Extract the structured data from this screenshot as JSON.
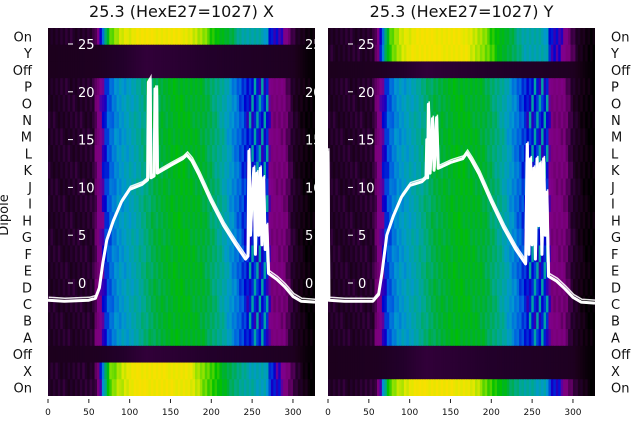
{
  "chart_data": [
    {
      "type": "heatmap",
      "title": "25.3 (HexE27=1027) X",
      "ylabel": "Dipole",
      "row_labels": [
        "On",
        "Y",
        "Off",
        "P",
        "O",
        "N",
        "M",
        "L",
        "K",
        "J",
        "I",
        "H",
        "G",
        "F",
        "E",
        "D",
        "C",
        "B",
        "A",
        "Off",
        "X",
        "On"
      ],
      "row_types": [
        "bright",
        "dark",
        "dark",
        "mid",
        "mid",
        "mid",
        "mid",
        "mid",
        "mid",
        "mid",
        "mid",
        "mid",
        "mid",
        "mid",
        "mid",
        "mid",
        "mid",
        "mid",
        "mid",
        "dark",
        "bright",
        "bright"
      ],
      "xlim": [
        0,
        327
      ],
      "x_ticks": [
        "0",
        "50",
        "100",
        "150",
        "200",
        "250",
        "300"
      ],
      "overlay_ylim": [
        -3.5,
        26.5
      ],
      "overlay_ticks": [
        "0",
        "5",
        "10",
        "15",
        "20",
        "25"
      ],
      "overlay_line": [
        [
          0,
          -1.8
        ],
        [
          20,
          -1.9
        ],
        [
          50,
          -1.8
        ],
        [
          58,
          -1.6
        ],
        [
          63,
          -0.5
        ],
        [
          67,
          2
        ],
        [
          72,
          4.5
        ],
        [
          80,
          6.5
        ],
        [
          90,
          8.5
        ],
        [
          100,
          9.8
        ],
        [
          115,
          10.3
        ],
        [
          122,
          10.8
        ],
        [
          123,
          21
        ],
        [
          125,
          21.3
        ],
        [
          126,
          11
        ],
        [
          130,
          11.2
        ],
        [
          131,
          20.3
        ],
        [
          133,
          20.3
        ],
        [
          134,
          11.5
        ],
        [
          150,
          12.3
        ],
        [
          165,
          13
        ],
        [
          170,
          13.4
        ],
        [
          176,
          12.8
        ],
        [
          185,
          11.3
        ],
        [
          200,
          8.5
        ],
        [
          215,
          6
        ],
        [
          230,
          4
        ],
        [
          242,
          2.5
        ],
        [
          245,
          2.8
        ],
        [
          246,
          13.8
        ],
        [
          248,
          5
        ],
        [
          250,
          9
        ],
        [
          252,
          12
        ],
        [
          254,
          3
        ],
        [
          256,
          11.5
        ],
        [
          258,
          5
        ],
        [
          260,
          12
        ],
        [
          262,
          4
        ],
        [
          264,
          11
        ],
        [
          266,
          3.5
        ],
        [
          268,
          6
        ],
        [
          270,
          1
        ],
        [
          280,
          0.4
        ],
        [
          290,
          -0.4
        ],
        [
          300,
          -1.4
        ],
        [
          310,
          -1.9
        ],
        [
          327,
          -2
        ]
      ]
    },
    {
      "type": "heatmap",
      "title": "25.3 (HexE27=1027) Y",
      "row_labels": [
        "On",
        "Y",
        "Off",
        "P",
        "O",
        "N",
        "M",
        "L",
        "K",
        "J",
        "I",
        "H",
        "G",
        "F",
        "E",
        "D",
        "C",
        "B",
        "A",
        "Off",
        "X",
        "On"
      ],
      "row_types": [
        "bright",
        "bright",
        "dark",
        "mid",
        "mid",
        "mid",
        "mid",
        "mid",
        "mid",
        "mid",
        "mid",
        "mid",
        "mid",
        "mid",
        "mid",
        "mid",
        "mid",
        "mid",
        "mid",
        "dark",
        "dark",
        "bright"
      ],
      "xlim": [
        0,
        327
      ],
      "x_ticks": [
        "0",
        "50",
        "100",
        "150",
        "200",
        "250",
        "300"
      ],
      "overlay_ylim": [
        -3.5,
        26.5
      ],
      "overlay_ticks": [
        "0",
        "5",
        "10",
        "15",
        "20",
        "25"
      ],
      "overlay_line": [
        [
          0,
          13.8
        ],
        [
          1,
          -1.8
        ],
        [
          20,
          -1.9
        ],
        [
          55,
          -1.9
        ],
        [
          62,
          -1.2
        ],
        [
          66,
          1
        ],
        [
          72,
          5
        ],
        [
          80,
          7
        ],
        [
          90,
          9
        ],
        [
          100,
          10.2
        ],
        [
          115,
          10.6
        ],
        [
          120,
          11
        ],
        [
          121,
          15
        ],
        [
          122,
          11
        ],
        [
          123,
          18.7
        ],
        [
          125,
          11.5
        ],
        [
          128,
          17.2
        ],
        [
          130,
          11.8
        ],
        [
          133,
          17.3
        ],
        [
          135,
          12
        ],
        [
          150,
          12.6
        ],
        [
          165,
          13
        ],
        [
          170,
          13.6
        ],
        [
          176,
          12.8
        ],
        [
          185,
          11.4
        ],
        [
          200,
          8.5
        ],
        [
          215,
          5.8
        ],
        [
          230,
          3.5
        ],
        [
          242,
          2
        ],
        [
          244,
          14.5
        ],
        [
          246,
          3
        ],
        [
          248,
          13
        ],
        [
          250,
          4
        ],
        [
          252,
          12
        ],
        [
          254,
          2.5
        ],
        [
          256,
          13
        ],
        [
          258,
          6
        ],
        [
          260,
          12.5
        ],
        [
          262,
          3
        ],
        [
          264,
          13
        ],
        [
          266,
          5
        ],
        [
          268,
          9.5
        ],
        [
          270,
          0.7
        ],
        [
          280,
          0.2
        ],
        [
          290,
          -0.6
        ],
        [
          300,
          -1.5
        ],
        [
          310,
          -2
        ],
        [
          327,
          -2.1
        ]
      ]
    }
  ],
  "profiles": {
    "mid": [
      [
        0,
        0.09
      ],
      [
        55,
        0.1
      ],
      [
        60,
        0.2
      ],
      [
        66,
        0.28
      ],
      [
        72,
        0.36
      ],
      [
        85,
        0.44
      ],
      [
        110,
        0.5
      ],
      [
        130,
        0.58
      ],
      [
        160,
        0.63
      ],
      [
        190,
        0.6
      ],
      [
        215,
        0.5
      ],
      [
        232,
        0.4
      ],
      [
        244,
        0.33
      ],
      [
        270,
        0.33
      ],
      [
        273,
        0.22
      ],
      [
        290,
        0.2
      ],
      [
        300,
        0.1
      ],
      [
        315,
        0.03
      ],
      [
        327,
        0
      ]
    ],
    "bright": [
      [
        0,
        0.09
      ],
      [
        55,
        0.1
      ],
      [
        62,
        0.22
      ],
      [
        68,
        0.45
      ],
      [
        75,
        0.7
      ],
      [
        90,
        0.8
      ],
      [
        110,
        0.87
      ],
      [
        170,
        0.85
      ],
      [
        195,
        0.72
      ],
      [
        215,
        0.62
      ],
      [
        240,
        0.5
      ],
      [
        268,
        0.48
      ],
      [
        272,
        0.33
      ],
      [
        285,
        0.3
      ],
      [
        292,
        0.22
      ],
      [
        305,
        0.1
      ],
      [
        320,
        0.02
      ],
      [
        327,
        0
      ]
    ],
    "dark": [
      [
        0,
        0.07
      ],
      [
        60,
        0.08
      ],
      [
        120,
        0.12
      ],
      [
        200,
        0.1
      ],
      [
        300,
        0.08
      ],
      [
        315,
        0.03
      ],
      [
        327,
        0
      ]
    ]
  },
  "colormap": [
    [
      0,
      "#000000"
    ],
    [
      0.06,
      "#1a0018"
    ],
    [
      0.1,
      "#22002a"
    ],
    [
      0.14,
      "#400048"
    ],
    [
      0.2,
      "#7a007a"
    ],
    [
      0.27,
      "#80008c"
    ],
    [
      0.32,
      "#0000d0"
    ],
    [
      0.38,
      "#0060e0"
    ],
    [
      0.45,
      "#0098d0"
    ],
    [
      0.52,
      "#00a890"
    ],
    [
      0.6,
      "#00b030"
    ],
    [
      0.66,
      "#00c000"
    ],
    [
      0.74,
      "#80e000"
    ],
    [
      0.82,
      "#e0e800"
    ],
    [
      0.88,
      "#f8e000"
    ]
  ],
  "line_color": "#ffffff"
}
